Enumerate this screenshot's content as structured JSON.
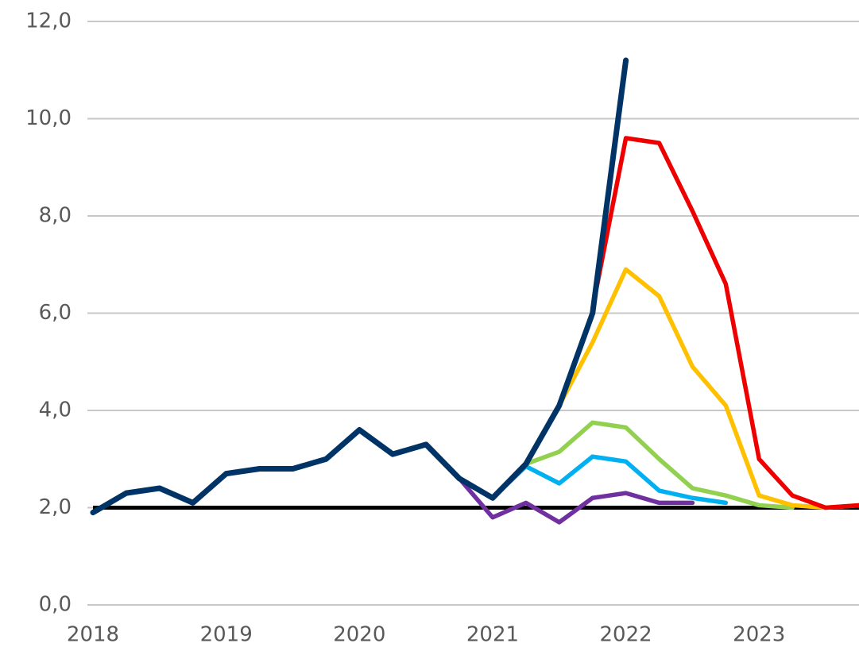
{
  "chart_data": {
    "type": "line",
    "xlim": [
      2018,
      2023.75
    ],
    "xticks": [
      2018,
      2019,
      2020,
      2021,
      2022,
      2023
    ],
    "ylim": [
      0,
      12
    ],
    "yticks": [
      {
        "value": 0,
        "label": "0,0"
      },
      {
        "value": 2,
        "label": "2,0"
      },
      {
        "value": 4,
        "label": "4,0"
      },
      {
        "value": 6,
        "label": "6,0"
      },
      {
        "value": 8,
        "label": "8,0"
      },
      {
        "value": 10,
        "label": "10,0"
      },
      {
        "value": 12,
        "label": "12,0"
      }
    ],
    "grid": true,
    "reference_line": {
      "value": 2,
      "color": "#000000"
    },
    "series": [
      {
        "color": "#7030a0",
        "x": [
          2020.75,
          2021,
          2021.25,
          2021.5,
          2021.75,
          2022,
          2022.25,
          2022.5
        ],
        "values": [
          2.6,
          1.8,
          2.1,
          1.7,
          2.2,
          2.3,
          2.1,
          2.1
        ]
      },
      {
        "color": "#00b0f0",
        "x": [
          2021,
          2021.25,
          2021.5,
          2021.75,
          2022,
          2022.25,
          2022.5,
          2022.75
        ],
        "values": [
          2.2,
          2.85,
          2.5,
          3.05,
          2.95,
          2.35,
          2.2,
          2.1
        ]
      },
      {
        "color": "#92d050",
        "x": [
          2021.25,
          2021.5,
          2021.75,
          2022,
          2022.25,
          2022.5,
          2022.75,
          2023,
          2023.25
        ],
        "values": [
          2.9,
          3.15,
          3.75,
          3.65,
          3.0,
          2.4,
          2.25,
          2.05,
          2.0
        ]
      },
      {
        "color": "#ffc000",
        "x": [
          2021.5,
          2021.75,
          2022,
          2022.25,
          2022.5,
          2022.75,
          2023,
          2023.25,
          2023.5,
          2023.75
        ],
        "values": [
          4.1,
          5.4,
          6.9,
          6.35,
          4.9,
          4.1,
          2.25,
          2.05,
          2.0,
          2.05
        ]
      },
      {
        "color": "#ee0000",
        "x": [
          2021.75,
          2022,
          2022.25,
          2022.5,
          2022.75,
          2023,
          2023.25,
          2023.5,
          2023.75
        ],
        "values": [
          6.1,
          9.6,
          9.5,
          8.1,
          6.6,
          3.0,
          2.25,
          2.0,
          2.05
        ]
      },
      {
        "color": "#003366",
        "x": [
          2018,
          2018.25,
          2018.5,
          2018.75,
          2019,
          2019.25,
          2019.5,
          2019.75,
          2020,
          2020.25,
          2020.5,
          2020.75,
          2021,
          2021.25,
          2021.5,
          2021.75,
          2022
        ],
        "values": [
          1.9,
          2.3,
          2.4,
          2.1,
          2.7,
          2.8,
          2.8,
          3.0,
          3.6,
          3.1,
          3.3,
          2.6,
          2.2,
          2.9,
          4.1,
          6.0,
          11.2
        ]
      }
    ]
  }
}
